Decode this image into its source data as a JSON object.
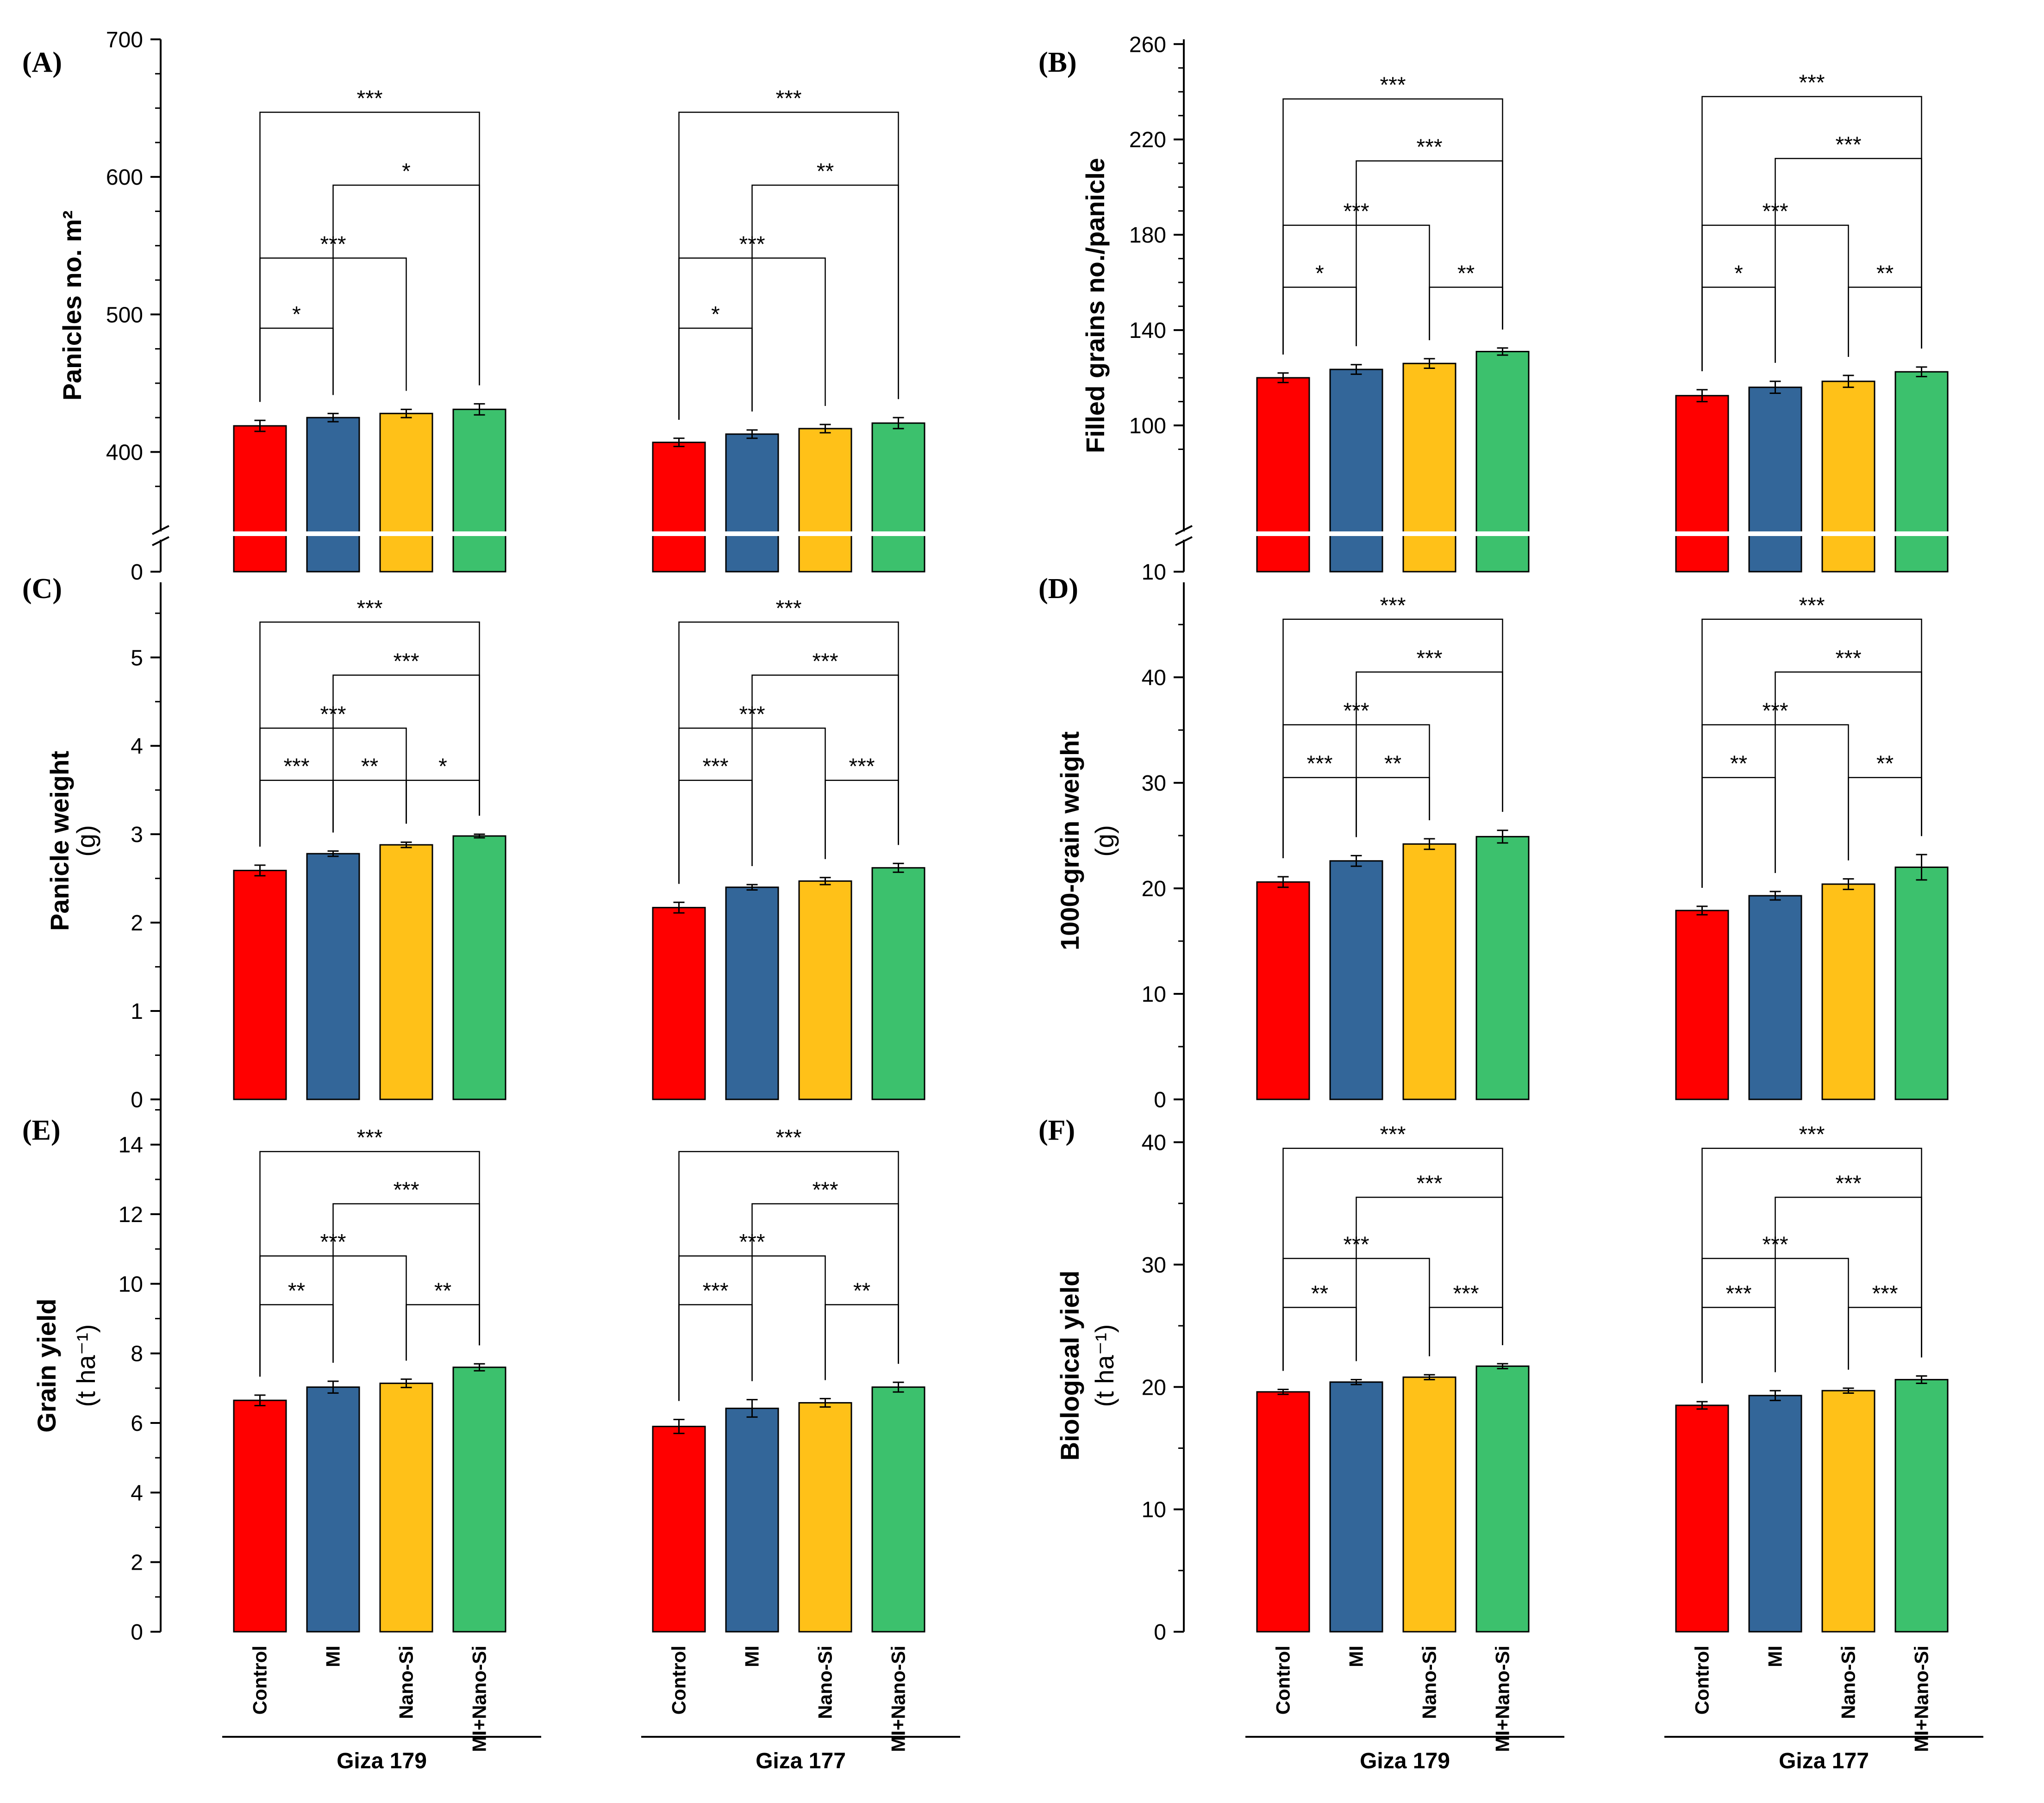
{
  "colors": {
    "Control": "#ff0000",
    "MI": "#336699",
    "Nano-Si": "#ffc118",
    "MI+Nano-Si": "#3cc16d"
  },
  "groups": [
    "Giza 179",
    "Giza 177"
  ],
  "treatments": [
    "Control",
    "MI",
    "Nano-Si",
    "MI+Nano-Si"
  ],
  "chart_data": [
    {
      "panel": "(A)",
      "type": "bar",
      "ylabel": "Panicles no. m²",
      "ylabel_lines": [
        "Panicles no. m²"
      ],
      "ylim": [
        350,
        700
      ],
      "axis_break": true,
      "ticks": [
        "0",
        "400",
        "500",
        "600",
        "700"
      ],
      "tick_values": [
        null,
        400,
        500,
        600,
        700
      ],
      "minor_step": 25,
      "series": [
        {
          "group": "Giza 179",
          "values": [
            419,
            425,
            428,
            431
          ],
          "errors": [
            4,
            3,
            3,
            4
          ]
        },
        {
          "group": "Giza 177",
          "values": [
            407,
            413,
            417,
            421
          ],
          "errors": [
            3,
            3,
            3,
            4
          ]
        }
      ],
      "comparisons": [
        {
          "group": 0,
          "from": 0,
          "to": 1,
          "label": "*",
          "level": 490
        },
        {
          "group": 0,
          "from": 0,
          "to": 2,
          "label": "***",
          "level": 541
        },
        {
          "group": 0,
          "from": 1,
          "to": 3,
          "label": "*",
          "level": 594
        },
        {
          "group": 0,
          "from": 0,
          "to": 3,
          "label": "***",
          "level": 647
        },
        {
          "group": 1,
          "from": 0,
          "to": 1,
          "label": "*",
          "level": 490
        },
        {
          "group": 1,
          "from": 0,
          "to": 2,
          "label": "***",
          "level": 541
        },
        {
          "group": 1,
          "from": 1,
          "to": 3,
          "label": "**",
          "level": 594
        },
        {
          "group": 1,
          "from": 0,
          "to": 3,
          "label": "***",
          "level": 647
        }
      ]
    },
    {
      "panel": "(B)",
      "type": "bar",
      "ylabel": "Filled grains no./panicle",
      "ylabel_lines": [
        "Filled grains no./panicle"
      ],
      "ylim": [
        60,
        262
      ],
      "axis_break": true,
      "ticks": [
        "10",
        "100",
        "140",
        "180",
        "220",
        "260"
      ],
      "tick_values": [
        null,
        100,
        140,
        180,
        220,
        260
      ],
      "minor_step": 10,
      "series": [
        {
          "group": "Giza 179",
          "values": [
            120,
            123.5,
            126,
            131
          ],
          "errors": [
            2,
            2,
            2,
            1.5
          ]
        },
        {
          "group": "Giza 177",
          "values": [
            112.5,
            116,
            118.5,
            122.5
          ],
          "errors": [
            2.5,
            2.5,
            2.5,
            2
          ]
        }
      ],
      "comparisons": [
        {
          "group": 0,
          "from": 0,
          "to": 1,
          "label": "*",
          "level": 158
        },
        {
          "group": 0,
          "from": 2,
          "to": 3,
          "label": "**",
          "level": 158
        },
        {
          "group": 0,
          "from": 0,
          "to": 2,
          "label": "***",
          "level": 184
        },
        {
          "group": 0,
          "from": 1,
          "to": 3,
          "label": "***",
          "level": 211
        },
        {
          "group": 0,
          "from": 0,
          "to": 3,
          "label": "***",
          "level": 237
        },
        {
          "group": 1,
          "from": 0,
          "to": 1,
          "label": "*",
          "level": 158
        },
        {
          "group": 1,
          "from": 2,
          "to": 3,
          "label": "**",
          "level": 158
        },
        {
          "group": 1,
          "from": 0,
          "to": 2,
          "label": "***",
          "level": 184
        },
        {
          "group": 1,
          "from": 1,
          "to": 3,
          "label": "***",
          "level": 212
        },
        {
          "group": 1,
          "from": 0,
          "to": 3,
          "label": "***",
          "level": 238
        }
      ]
    },
    {
      "panel": "(C)",
      "type": "bar",
      "ylabel": "Panicle weight (g)",
      "ylabel_lines": [
        "Panicle weight",
        "(g)"
      ],
      "ylim": [
        0,
        5.85
      ],
      "axis_break": false,
      "ticks": [
        "0",
        "1",
        "2",
        "3",
        "4",
        "5"
      ],
      "tick_values": [
        0,
        1,
        2,
        3,
        4,
        5
      ],
      "minor_step": 0.5,
      "series": [
        {
          "group": "Giza 179",
          "values": [
            2.59,
            2.78,
            2.88,
            2.98
          ],
          "errors": [
            0.06,
            0.03,
            0.03,
            0.02
          ]
        },
        {
          "group": "Giza 177",
          "values": [
            2.17,
            2.4,
            2.47,
            2.62
          ],
          "errors": [
            0.06,
            0.03,
            0.04,
            0.05
          ]
        }
      ],
      "comparisons": [
        {
          "group": 0,
          "from": 0,
          "to": 1,
          "label": "***",
          "level": 3.61
        },
        {
          "group": 0,
          "from": 1,
          "to": 2,
          "label": "**",
          "level": 3.61
        },
        {
          "group": 0,
          "from": 2,
          "to": 3,
          "label": "*",
          "level": 3.61
        },
        {
          "group": 0,
          "from": 0,
          "to": 2,
          "label": "***",
          "level": 4.2
        },
        {
          "group": 0,
          "from": 1,
          "to": 3,
          "label": "***",
          "level": 4.8
        },
        {
          "group": 0,
          "from": 0,
          "to": 3,
          "label": "***",
          "level": 5.4
        },
        {
          "group": 1,
          "from": 0,
          "to": 1,
          "label": "***",
          "level": 3.61
        },
        {
          "group": 1,
          "from": 2,
          "to": 3,
          "label": "***",
          "level": 3.61
        },
        {
          "group": 1,
          "from": 0,
          "to": 2,
          "label": "***",
          "level": 4.2
        },
        {
          "group": 1,
          "from": 1,
          "to": 3,
          "label": "***",
          "level": 4.8
        },
        {
          "group": 1,
          "from": 0,
          "to": 3,
          "label": "***",
          "level": 5.4
        }
      ]
    },
    {
      "panel": "(D)",
      "type": "bar",
      "ylabel": "1000-grain weight (g)",
      "ylabel_lines": [
        "1000-grain weight",
        "(g)"
      ],
      "ylim": [
        0,
        49
      ],
      "axis_break": false,
      "ticks": [
        "0",
        "10",
        "20",
        "30",
        "40"
      ],
      "tick_values": [
        0,
        10,
        20,
        30,
        40
      ],
      "minor_step": 5,
      "series": [
        {
          "group": "Giza 179",
          "values": [
            20.6,
            22.6,
            24.2,
            24.9
          ],
          "errors": [
            0.5,
            0.5,
            0.5,
            0.6
          ]
        },
        {
          "group": "Giza 177",
          "values": [
            17.9,
            19.3,
            20.4,
            22
          ],
          "errors": [
            0.4,
            0.4,
            0.5,
            1.2
          ]
        }
      ],
      "comparisons": [
        {
          "group": 0,
          "from": 0,
          "to": 1,
          "label": "***",
          "level": 30.5
        },
        {
          "group": 0,
          "from": 1,
          "to": 2,
          "label": "**",
          "level": 30.5
        },
        {
          "group": 0,
          "from": 0,
          "to": 2,
          "label": "***",
          "level": 35.5
        },
        {
          "group": 0,
          "from": 1,
          "to": 3,
          "label": "***",
          "level": 40.5
        },
        {
          "group": 0,
          "from": 0,
          "to": 3,
          "label": "***",
          "level": 45.5
        },
        {
          "group": 1,
          "from": 0,
          "to": 1,
          "label": "**",
          "level": 30.5
        },
        {
          "group": 1,
          "from": 2,
          "to": 3,
          "label": "**",
          "level": 30.5
        },
        {
          "group": 1,
          "from": 0,
          "to": 2,
          "label": "***",
          "level": 35.5
        },
        {
          "group": 1,
          "from": 1,
          "to": 3,
          "label": "***",
          "level": 40.5
        },
        {
          "group": 1,
          "from": 0,
          "to": 3,
          "label": "***",
          "level": 45.5
        }
      ]
    },
    {
      "panel": "(E)",
      "type": "bar",
      "ylabel": "Grain yield (t ha⁻¹)",
      "ylabel_lines": [
        "Grain yield",
        "(t ha⁻¹)"
      ],
      "ylim": [
        0,
        15.3
      ],
      "axis_break": false,
      "ticks": [
        "0",
        "2",
        "4",
        "6",
        "8",
        "10",
        "12",
        "14"
      ],
      "tick_values": [
        0,
        2,
        4,
        6,
        8,
        10,
        12,
        14
      ],
      "minor_step": 1,
      "series": [
        {
          "group": "Giza 179",
          "values": [
            6.65,
            7.03,
            7.14,
            7.6
          ],
          "errors": [
            0.15,
            0.17,
            0.12,
            0.1
          ]
        },
        {
          "group": "Giza 177",
          "values": [
            5.9,
            6.42,
            6.58,
            7.03
          ],
          "errors": [
            0.2,
            0.25,
            0.12,
            0.14
          ]
        }
      ],
      "comparisons": [
        {
          "group": 0,
          "from": 0,
          "to": 1,
          "label": "**",
          "level": 9.4
        },
        {
          "group": 0,
          "from": 2,
          "to": 3,
          "label": "**",
          "level": 9.4
        },
        {
          "group": 0,
          "from": 0,
          "to": 2,
          "label": "***",
          "level": 10.8
        },
        {
          "group": 0,
          "from": 1,
          "to": 3,
          "label": "***",
          "level": 12.3
        },
        {
          "group": 0,
          "from": 0,
          "to": 3,
          "label": "***",
          "level": 13.8
        },
        {
          "group": 1,
          "from": 0,
          "to": 1,
          "label": "***",
          "level": 9.4
        },
        {
          "group": 1,
          "from": 2,
          "to": 3,
          "label": "**",
          "level": 9.4
        },
        {
          "group": 1,
          "from": 0,
          "to": 2,
          "label": "***",
          "level": 10.8
        },
        {
          "group": 1,
          "from": 1,
          "to": 3,
          "label": "***",
          "level": 12.3
        },
        {
          "group": 1,
          "from": 0,
          "to": 3,
          "label": "***",
          "level": 13.8
        }
      ]
    },
    {
      "panel": "(F)",
      "type": "bar",
      "ylabel": "Biological yield (t ha⁻¹)",
      "ylabel_lines": [
        "Biological yield",
        "(t ha⁻¹)"
      ],
      "ylim": [
        0,
        43.5
      ],
      "axis_break": false,
      "ticks": [
        "0",
        "10",
        "20",
        "30",
        "40"
      ],
      "tick_values": [
        0,
        10,
        20,
        30,
        40
      ],
      "minor_step": 5,
      "series": [
        {
          "group": "Giza 179",
          "values": [
            19.6,
            20.4,
            20.8,
            21.7
          ],
          "errors": [
            0.2,
            0.2,
            0.2,
            0.2
          ]
        },
        {
          "group": "Giza 177",
          "values": [
            18.5,
            19.3,
            19.7,
            20.6
          ],
          "errors": [
            0.3,
            0.4,
            0.2,
            0.3
          ]
        }
      ],
      "comparisons": [
        {
          "group": 0,
          "from": 0,
          "to": 1,
          "label": "**",
          "level": 26.5
        },
        {
          "group": 0,
          "from": 2,
          "to": 3,
          "label": "***",
          "level": 26.5
        },
        {
          "group": 0,
          "from": 0,
          "to": 2,
          "label": "***",
          "level": 30.5
        },
        {
          "group": 0,
          "from": 1,
          "to": 3,
          "label": "***",
          "level": 35.5
        },
        {
          "group": 0,
          "from": 0,
          "to": 3,
          "label": "***",
          "level": 39.5
        },
        {
          "group": 1,
          "from": 0,
          "to": 1,
          "label": "***",
          "level": 26.5
        },
        {
          "group": 1,
          "from": 2,
          "to": 3,
          "label": "***",
          "level": 26.5
        },
        {
          "group": 1,
          "from": 0,
          "to": 2,
          "label": "***",
          "level": 30.5
        },
        {
          "group": 1,
          "from": 1,
          "to": 3,
          "label": "***",
          "level": 35.5
        },
        {
          "group": 1,
          "from": 0,
          "to": 3,
          "label": "***",
          "level": 39.5
        }
      ]
    }
  ]
}
